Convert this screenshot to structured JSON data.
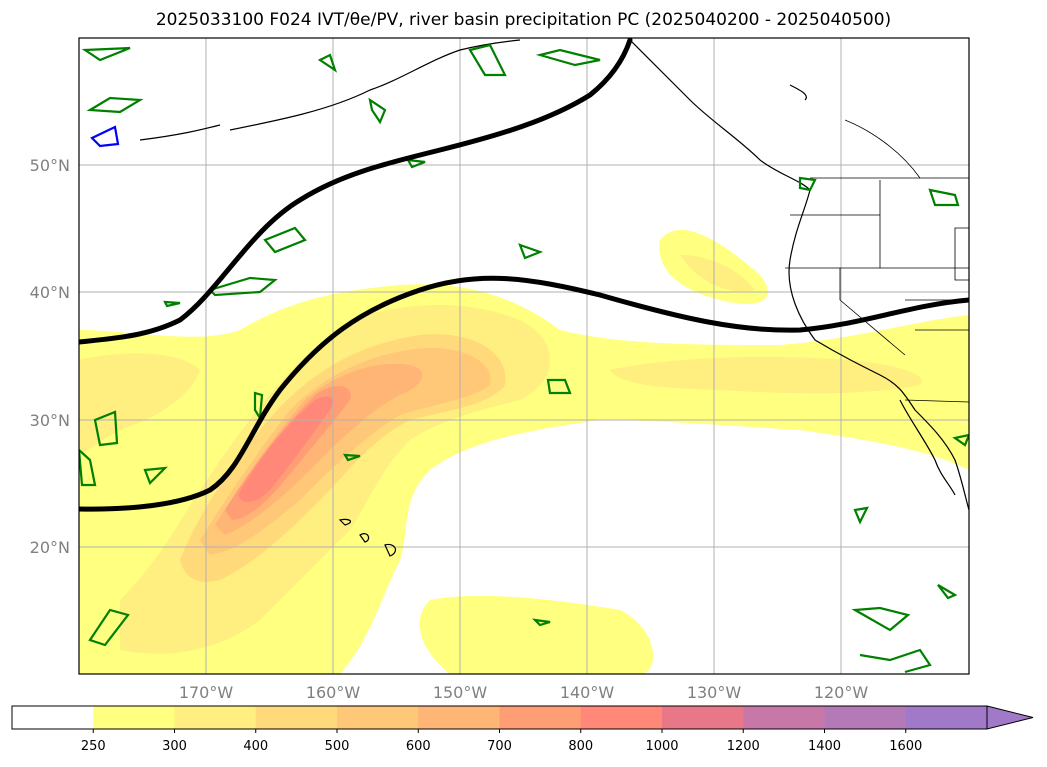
{
  "title": "2025033100 F024 IVT/θe/PV, river basin precipitation PC (2025040200 - 2025040500)",
  "lat_labels": [
    "50°N",
    "40°N",
    "30°N",
    "20°N"
  ],
  "lon_labels": [
    "170°W",
    "160°W",
    "150°W",
    "140°W",
    "130°W",
    "120°W"
  ],
  "colorbar": {
    "ticks": [
      "250",
      "300",
      "400",
      "500",
      "600",
      "700",
      "800",
      "1000",
      "1200",
      "1400",
      "1600"
    ],
    "colors": [
      "#ffffff",
      "#ffff80",
      "#ffee80",
      "#ffd97a",
      "#ffc878",
      "#ffb575",
      "#ff9e75",
      "#ff8878",
      "#e87888",
      "#c878a8",
      "#b47ab8",
      "#a07ac8"
    ],
    "extend": "max"
  },
  "layers": {
    "ivt_fill": "IVT shaded contours",
    "theta_e": "black thick contour",
    "pv": "green contours",
    "pv_blue": "blue contour"
  }
}
